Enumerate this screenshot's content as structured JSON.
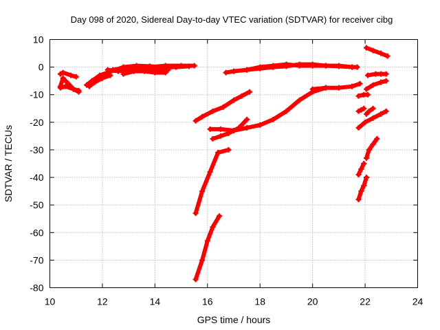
{
  "chart_data": {
    "type": "scatter",
    "title": "Day 098 of 2020, Sidereal Day-to-day VTEC variation (SDTVAR) for receiver cibg",
    "xlabel": "GPS time / hours",
    "ylabel": "SDTVAR / TECUs",
    "xlim": [
      10,
      24
    ],
    "ylim": [
      -80,
      10
    ],
    "xticks": [
      10,
      12,
      14,
      16,
      18,
      20,
      22,
      24
    ],
    "yticks": [
      10,
      0,
      -10,
      -20,
      -30,
      -40,
      -50,
      -60,
      -70,
      -80
    ],
    "xtick_labels": [
      "10",
      "12",
      "14",
      "16",
      "18",
      "20",
      "22",
      "24"
    ],
    "ytick_labels": [
      "10",
      "0",
      "-10",
      "-20",
      "-30",
      "-40",
      "-50",
      "-60",
      "-70",
      "-80"
    ],
    "grid": true,
    "marker": "plus",
    "color": "#ff0000",
    "series": [
      {
        "name": "s1",
        "x": [
          10.4,
          10.5,
          10.8,
          11.0
        ],
        "y": [
          -2.5,
          -2,
          -3,
          -3.5
        ]
      },
      {
        "name": "s2",
        "x": [
          10.4,
          10.5,
          10.7,
          10.9,
          11.1
        ],
        "y": [
          -7,
          -4,
          -6,
          -8,
          -8.5
        ]
      },
      {
        "name": "s3",
        "x": [
          10.4,
          10.6,
          10.9,
          11.1
        ],
        "y": [
          -7.5,
          -7,
          -8,
          -9
        ]
      },
      {
        "name": "s4",
        "x": [
          11.4,
          11.6,
          11.9,
          12.2,
          12.5,
          12.8
        ],
        "y": [
          -6.5,
          -5,
          -3,
          -2,
          -1,
          0
        ]
      },
      {
        "name": "s5",
        "x": [
          11.5,
          11.7,
          12.0,
          12.3
        ],
        "y": [
          -7,
          -5.5,
          -4,
          -3
        ]
      },
      {
        "name": "s6",
        "x": [
          12.4,
          12.8,
          13.2,
          13.8,
          14.4,
          15.0,
          15.5
        ],
        "y": [
          -1,
          -0.5,
          0,
          0,
          0.5,
          0.5,
          0.5
        ]
      },
      {
        "name": "s7",
        "x": [
          12.2,
          12.6,
          13.0,
          13.4,
          13.8,
          14.2,
          14.5
        ],
        "y": [
          -1,
          -1.5,
          -1,
          -0.5,
          -1,
          -1,
          -1
        ]
      },
      {
        "name": "s8",
        "x": [
          12.8,
          13.2,
          13.6,
          14.0,
          14.4
        ],
        "y": [
          -2.5,
          -1.5,
          -1.5,
          -2,
          -2
        ]
      },
      {
        "name": "s9",
        "x": [
          12.8,
          13.3,
          13.8,
          14.3,
          14.8,
          15.3
        ],
        "y": [
          0,
          0.5,
          0.3,
          0,
          0,
          0.3
        ]
      },
      {
        "name": "s10",
        "x": [
          15.55,
          15.8,
          16.2,
          16.6,
          17.0,
          17.3,
          17.6
        ],
        "y": [
          -19.5,
          -18,
          -16,
          -14.5,
          -12,
          -10.5,
          -9
        ]
      },
      {
        "name": "s11",
        "x": [
          15.55,
          15.8,
          16.1,
          16.4,
          16.8
        ],
        "y": [
          -53,
          -45,
          -38,
          -31,
          -30
        ]
      },
      {
        "name": "s12",
        "x": [
          15.55,
          15.8,
          16.0,
          16.2,
          16.45
        ],
        "y": [
          -77,
          -70,
          -63,
          -58,
          -54
        ]
      },
      {
        "name": "s13",
        "x": [
          16.2,
          16.5,
          16.8,
          17.2,
          17.5
        ],
        "y": [
          -26,
          -25,
          -24,
          -22,
          -19
        ]
      },
      {
        "name": "s14",
        "x": [
          16.1,
          16.5,
          17.0,
          17.5,
          18.0,
          18.5,
          19.0,
          19.5,
          20.0,
          20.5
        ],
        "y": [
          -22.5,
          -22.5,
          -23,
          -22,
          -21,
          -19,
          -16,
          -12,
          -9,
          -7.5
        ]
      },
      {
        "name": "s15",
        "x": [
          16.7,
          17.0,
          17.5,
          18.0,
          18.5,
          19.0,
          19.5,
          20.0,
          20.5,
          21.0,
          21.5,
          21.7
        ],
        "y": [
          -2,
          -1.5,
          -1,
          -0.5,
          0,
          0.3,
          1,
          1,
          0.5,
          0.3,
          0,
          0
        ]
      },
      {
        "name": "s16",
        "x": [
          17.5,
          18.0,
          18.5,
          19.0,
          19.5,
          20.0,
          20.5,
          21.0,
          21.5
        ],
        "y": [
          -1,
          0,
          0.5,
          1,
          0.5,
          0.5,
          0.5,
          0.5,
          0
        ]
      },
      {
        "name": "s17",
        "x": [
          20.0,
          20.5,
          21.0,
          21.5,
          21.8
        ],
        "y": [
          -8,
          -7.5,
          -7.5,
          -7,
          -6
        ]
      },
      {
        "name": "s18",
        "x": [
          21.75,
          21.95,
          22.1
        ],
        "y": [
          -10.5,
          -10,
          -10
        ]
      },
      {
        "name": "s19",
        "x": [
          21.75,
          21.85,
          21.95
        ],
        "y": [
          -16,
          -15.5,
          -15
        ]
      },
      {
        "name": "s20",
        "x": [
          21.75,
          22.0,
          22.3,
          22.6,
          22.8
        ],
        "y": [
          -22,
          -20,
          -18.5,
          -17,
          -16
        ]
      },
      {
        "name": "s21",
        "x": [
          22.05,
          22.15,
          22.3
        ],
        "y": [
          -17,
          -16,
          -15
        ]
      },
      {
        "name": "s22",
        "x": [
          21.75,
          21.85,
          21.95
        ],
        "y": [
          -39,
          -37,
          -35
        ]
      },
      {
        "name": "s23",
        "x": [
          21.75,
          21.85,
          21.95,
          22.05
        ],
        "y": [
          -48,
          -45,
          -43,
          -40
        ]
      },
      {
        "name": "s24",
        "x": [
          22.05,
          22.15,
          22.3,
          22.45
        ],
        "y": [
          -33,
          -30,
          -28,
          -26
        ]
      },
      {
        "name": "s25",
        "x": [
          22.05,
          22.3,
          22.6,
          22.85
        ],
        "y": [
          7,
          6,
          5,
          4
        ]
      },
      {
        "name": "s26",
        "x": [
          22.1,
          22.4,
          22.6,
          22.8
        ],
        "y": [
          -3,
          -2.5,
          -2.5,
          -2.5
        ]
      },
      {
        "name": "s27",
        "x": [
          22.05,
          22.3,
          22.6,
          22.8
        ],
        "y": [
          -8,
          -6.5,
          -5.5,
          -5
        ]
      }
    ]
  }
}
